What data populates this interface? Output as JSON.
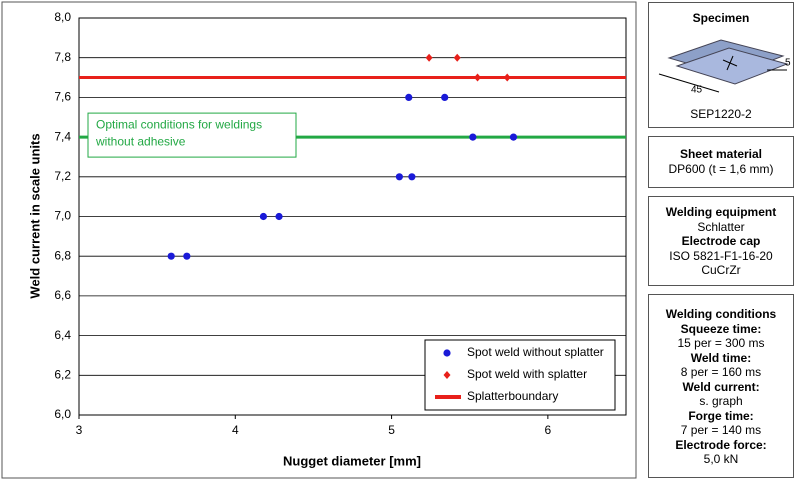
{
  "chart_data": {
    "type": "scatter",
    "x_label": "Nugget diameter [mm]",
    "y_label": "Weld current in scale units",
    "xlim": [
      3,
      6.5
    ],
    "xticks": [
      3,
      4,
      5,
      6
    ],
    "ylim": [
      6,
      8
    ],
    "yticks": [
      {
        "value": 6,
        "label": "6,0"
      },
      {
        "value": 6.2,
        "label": "6,2"
      },
      {
        "value": 6.4,
        "label": "6,4"
      },
      {
        "value": 6.6,
        "label": "6,6"
      },
      {
        "value": 6.8,
        "label": "6,8"
      },
      {
        "value": 7,
        "label": "7,0"
      },
      {
        "value": 7.2,
        "label": "7,2"
      },
      {
        "value": 7.4,
        "label": "7,4"
      },
      {
        "value": 7.6,
        "label": "7,6"
      },
      {
        "value": 7.8,
        "label": "7,8"
      },
      {
        "value": 8,
        "label": "8,0"
      }
    ],
    "grid": true,
    "legend": "lower right",
    "series": [
      {
        "name": "Spot weld without splatter",
        "color": "#1a1ad8",
        "marker": "circle",
        "x": [
          3.59,
          3.69,
          4.18,
          4.28,
          5.05,
          5.13,
          5.11,
          5.34,
          5.52,
          5.78
        ],
        "values": [
          6.8,
          6.8,
          7.0,
          7.0,
          7.2,
          7.2,
          7.6,
          7.6,
          7.4,
          7.4
        ]
      },
      {
        "name": "Spot weld with splatter",
        "color": "#e8201a",
        "marker": "diamond",
        "x": [
          5.24,
          5.42,
          5.55,
          5.74
        ],
        "values": [
          7.8,
          7.8,
          7.7,
          7.7
        ]
      },
      {
        "name": "Splatterboundary",
        "color": "#e8201a",
        "marker": "line",
        "x": [
          3,
          6.5
        ],
        "values": [
          7.7,
          7.7
        ]
      }
    ],
    "reference_lines": [
      {
        "value": 7.4,
        "color": "#22a844",
        "label": [
          "Optimal conditions for  weldings",
          "without adhesive"
        ]
      }
    ]
  },
  "panels": [
    {
      "title": "Specimen",
      "dims": [
        "45",
        "5"
      ],
      "caption": "SEP1220-2"
    },
    {
      "lines": [
        {
          "text": "Sheet material",
          "bold": true
        },
        {
          "text": "DP600 (t = 1,6 mm)",
          "bold": false
        }
      ]
    },
    {
      "lines": [
        {
          "text": "Welding equipment",
          "bold": true
        },
        {
          "text": "Schlatter",
          "bold": false
        },
        {
          "text": "Electrode cap",
          "bold": true
        },
        {
          "text": "ISO 5821-F1-16-20",
          "bold": false
        },
        {
          "text": "CuCrZr",
          "bold": false
        }
      ]
    },
    {
      "lines": [
        {
          "text": "Welding conditions",
          "bold": true
        },
        {
          "text": "Squeeze time:",
          "bold": true
        },
        {
          "text": "15 per = 300 ms",
          "bold": false
        },
        {
          "text": "Weld time:",
          "bold": true
        },
        {
          "text": "8 per = 160 ms",
          "bold": false
        },
        {
          "text": "Weld current:",
          "bold": true
        },
        {
          "text": "s. graph",
          "bold": false
        },
        {
          "text": "Forge time:",
          "bold": true
        },
        {
          "text": "7 per = 140 ms",
          "bold": false
        },
        {
          "text": "Electrode force:",
          "bold": true
        },
        {
          "text": "5,0 kN",
          "bold": false
        }
      ]
    }
  ]
}
